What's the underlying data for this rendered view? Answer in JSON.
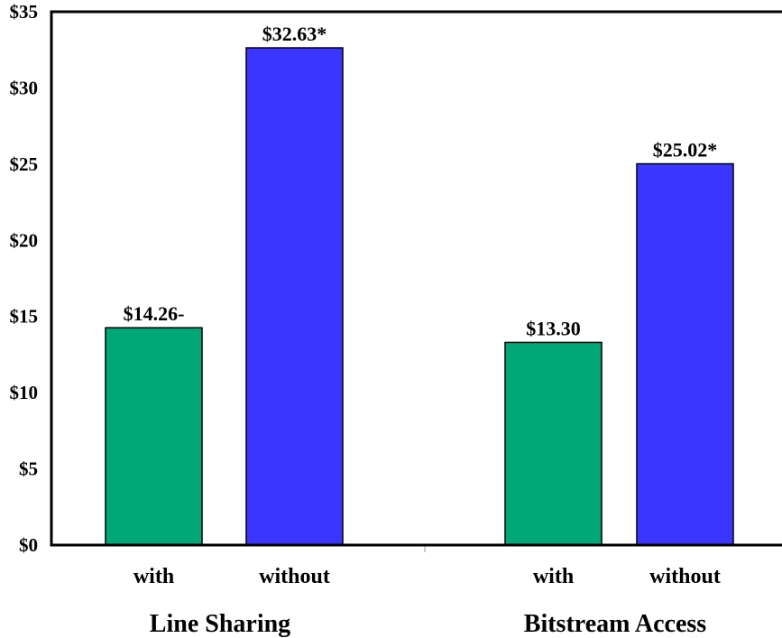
{
  "chart_data": {
    "type": "bar",
    "title": "",
    "xlabel": "",
    "ylabel": "",
    "ylim": [
      0,
      35
    ],
    "y_ticks": [
      0,
      5,
      10,
      15,
      20,
      25,
      30,
      35
    ],
    "y_tick_labels": [
      "$0",
      "$5",
      "$10",
      "$15",
      "$20",
      "$25",
      "$30",
      "$35"
    ],
    "grid": false,
    "groups": [
      {
        "name": "Line Sharing",
        "bars": [
          {
            "category": "with",
            "value": 14.26,
            "label": "$14.26-",
            "color": "#00a878"
          },
          {
            "category": "without",
            "value": 32.63,
            "label": "$32.63*",
            "color": "#3a36ff"
          }
        ]
      },
      {
        "name": "Bitstream Access",
        "bars": [
          {
            "category": "with",
            "value": 13.3,
            "label": "$13.30",
            "color": "#00a878"
          },
          {
            "category": "without",
            "value": 25.02,
            "label": "$25.02*",
            "color": "#3a36ff"
          }
        ]
      }
    ]
  }
}
